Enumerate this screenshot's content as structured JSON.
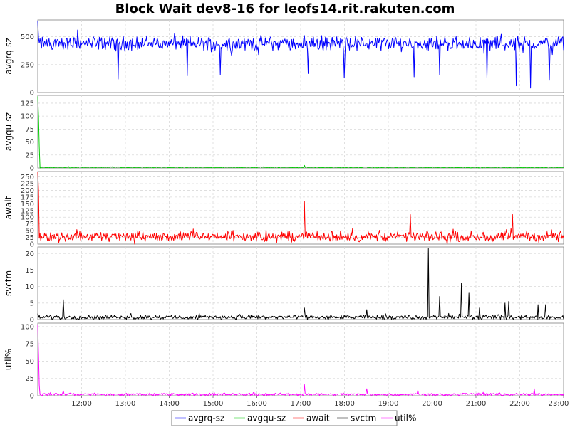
{
  "chart_data": {
    "type": "line",
    "title": "Block Wait dev8-16 for leofs14.rit.rakuten.com",
    "x": {
      "start": "11:00",
      "end": "23:00",
      "ticks": [
        "12:00",
        "13:00",
        "14:00",
        "15:00",
        "16:00",
        "17:00",
        "18:00",
        "19:00",
        "20:00",
        "21:00",
        "22:00",
        "23:00"
      ]
    },
    "panels": [
      {
        "ylabel": "avgrq-sz",
        "ylim": [
          0,
          650
        ],
        "yticks": [
          "0",
          "250",
          "500"
        ],
        "ytick_values": [
          0,
          250,
          500
        ],
        "series": {
          "name": "avgrq-sz",
          "color": "#0000ff",
          "baseline": 440,
          "noise": 55,
          "spikes": [
            {
              "t": "11:00",
              "v": 640
            },
            {
              "t": "11:55",
              "v": 560
            },
            {
              "t": "12:50",
              "v": 120
            },
            {
              "t": "14:25",
              "v": 150
            },
            {
              "t": "15:10",
              "v": 160
            },
            {
              "t": "17:10",
              "v": 170
            },
            {
              "t": "18:00",
              "v": 130
            },
            {
              "t": "19:35",
              "v": 140
            },
            {
              "t": "20:10",
              "v": 160
            },
            {
              "t": "21:15",
              "v": 130
            },
            {
              "t": "21:55",
              "v": 60
            },
            {
              "t": "22:15",
              "v": 40
            },
            {
              "t": "22:40",
              "v": 110
            }
          ]
        }
      },
      {
        "ylabel": "avgqu-sz",
        "ylim": [
          0,
          140
        ],
        "yticks": [
          "0",
          "25",
          "50",
          "75",
          "100",
          "125"
        ],
        "ytick_values": [
          0,
          25,
          50,
          75,
          100,
          125
        ],
        "series": {
          "name": "avgqu-sz",
          "color": "#00cc00",
          "baseline": 1.2,
          "noise": 0.8,
          "spikes": [
            {
              "t": "11:00",
              "v": 138
            },
            {
              "t": "11:01",
              "v": 100
            },
            {
              "t": "11:02",
              "v": 40
            },
            {
              "t": "17:05",
              "v": 5
            }
          ]
        }
      },
      {
        "ylabel": "await",
        "ylim": [
          0,
          270
        ],
        "yticks": [
          "0",
          "25",
          "50",
          "75",
          "100",
          "125",
          "150",
          "175",
          "200",
          "225",
          "250"
        ],
        "ytick_values": [
          0,
          25,
          50,
          75,
          100,
          125,
          150,
          175,
          200,
          225,
          250
        ],
        "series": {
          "name": "await",
          "color": "#ff0000",
          "baseline": 28,
          "noise": 16,
          "spikes": [
            {
              "t": "11:00",
              "v": 270
            },
            {
              "t": "11:01",
              "v": 200
            },
            {
              "t": "17:05",
              "v": 158
            },
            {
              "t": "19:30",
              "v": 110
            },
            {
              "t": "21:50",
              "v": 110
            }
          ]
        }
      },
      {
        "ylabel": "svctm",
        "ylim": [
          0,
          22
        ],
        "yticks": [
          "0",
          "5",
          "10",
          "15",
          "20"
        ],
        "ytick_values": [
          0,
          5,
          10,
          15,
          20
        ],
        "series": {
          "name": "svctm",
          "color": "#000000",
          "baseline": 0.7,
          "noise": 0.6,
          "spikes": [
            {
              "t": "11:00",
              "v": 1.8
            },
            {
              "t": "11:35",
              "v": 6
            },
            {
              "t": "17:05",
              "v": 3.5
            },
            {
              "t": "18:30",
              "v": 3
            },
            {
              "t": "19:55",
              "v": 21.5
            },
            {
              "t": "20:10",
              "v": 7
            },
            {
              "t": "20:40",
              "v": 11
            },
            {
              "t": "20:50",
              "v": 8
            },
            {
              "t": "21:05",
              "v": 3.5
            },
            {
              "t": "21:40",
              "v": 5
            },
            {
              "t": "21:45",
              "v": 5.5
            },
            {
              "t": "22:25",
              "v": 4.5
            },
            {
              "t": "22:35",
              "v": 4.5
            }
          ]
        }
      },
      {
        "ylabel": "util%",
        "ylim": [
          0,
          105
        ],
        "yticks": [
          "0",
          "25",
          "50",
          "75",
          "100"
        ],
        "ytick_values": [
          0,
          25,
          50,
          75,
          100
        ],
        "series": {
          "name": "util%",
          "color": "#ff00ff",
          "baseline": 2,
          "noise": 1.6,
          "spikes": [
            {
              "t": "11:00",
              "v": 103
            },
            {
              "t": "11:01",
              "v": 60
            },
            {
              "t": "11:02",
              "v": 15
            },
            {
              "t": "11:35",
              "v": 7
            },
            {
              "t": "17:05",
              "v": 16
            },
            {
              "t": "18:30",
              "v": 10
            },
            {
              "t": "19:40",
              "v": 8
            },
            {
              "t": "22:20",
              "v": 10
            }
          ]
        }
      }
    ],
    "legend": {
      "placement": "bottom-center",
      "items": [
        {
          "label": "avgrq-sz",
          "color": "#0000ff"
        },
        {
          "label": "avgqu-sz",
          "color": "#00cc00"
        },
        {
          "label": "await",
          "color": "#ff0000"
        },
        {
          "label": "svctm",
          "color": "#000000"
        },
        {
          "label": "util%",
          "color": "#ff00ff"
        }
      ]
    },
    "grid": true
  }
}
